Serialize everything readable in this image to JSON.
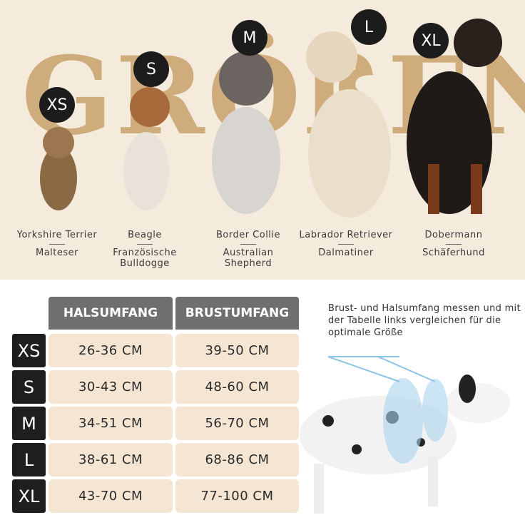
{
  "background_word": "GRÖßEN",
  "sizes": [
    {
      "label": "XS",
      "breeds": [
        "Yorkshire Terrier",
        "Malteser"
      ]
    },
    {
      "label": "S",
      "breeds": [
        "Beagle",
        "Französische Bulldogge"
      ]
    },
    {
      "label": "M",
      "breeds": [
        "Border Collie",
        "Australian Shepherd"
      ]
    },
    {
      "label": "L",
      "breeds": [
        "Labrador Retriever",
        "Dalmatiner"
      ]
    },
    {
      "label": "XL",
      "breeds": [
        "Dobermann",
        "Schäferhund"
      ]
    }
  ],
  "table": {
    "headers": [
      "HALSUMFANG",
      "BRUSTUMFANG"
    ],
    "rows": [
      [
        "XS",
        "26-36 CM",
        "39-50 CM"
      ],
      [
        "S",
        "30-43 CM",
        "48-60 CM"
      ],
      [
        "M",
        "34-51 CM",
        "56-70 CM"
      ],
      [
        "L",
        "38-61 CM",
        "68-86 CM"
      ],
      [
        "XL",
        "43-70 CM",
        "77-100 CM"
      ]
    ]
  },
  "note": "Brust- und Halsumfang messen und mit der Tabelle links vergleichen für die optimale Größe"
}
